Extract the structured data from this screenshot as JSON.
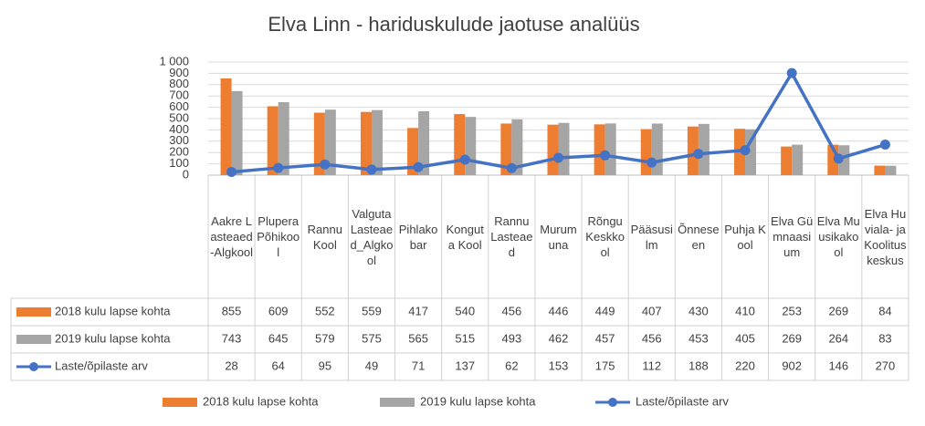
{
  "chart_data": {
    "type": "bar-line-table",
    "title": "Elva Linn - hariduskulude jaotuse analüüs",
    "categories": [
      "Aakre Lasteaed-Algkool",
      "Plupera Põhikool",
      "Rannu Kool",
      "Valguta Lasteaed_Algkool",
      "Pihlakobar",
      "Konguta Kool",
      "Rannu Lasteaed",
      "Murumuna",
      "Rõngu Keskkool",
      "Pääsusilm",
      "Õnneseen",
      "Puhja Kool",
      "Elva Gümnaasium",
      "Elva Muusikakool",
      "Elva Huviala- ja Koolituskeskus"
    ],
    "series": [
      {
        "name": "2018 kulu lapse kohta",
        "type": "bar",
        "color": "#ed7d31",
        "values": [
          855,
          609,
          552,
          559,
          417,
          540,
          456,
          446,
          449,
          407,
          430,
          410,
          253,
          269,
          84
        ]
      },
      {
        "name": "2019 kulu lapse kohta",
        "type": "bar",
        "color": "#a5a5a5",
        "values": [
          743,
          645,
          579,
          575,
          565,
          515,
          493,
          462,
          457,
          456,
          453,
          405,
          269,
          264,
          83
        ]
      },
      {
        "name": "Laste/õpilaste arv",
        "type": "line",
        "color": "#4472c4",
        "values": [
          28,
          64,
          95,
          49,
          71,
          137,
          62,
          153,
          175,
          112,
          188,
          220,
          902,
          146,
          270
        ]
      }
    ],
    "ylim": [
      0,
      1000
    ],
    "yticks": [
      0,
      100,
      200,
      300,
      400,
      500,
      600,
      700,
      800,
      900,
      {
        "value": 1000,
        "label": "1 000"
      }
    ],
    "grid": true
  }
}
